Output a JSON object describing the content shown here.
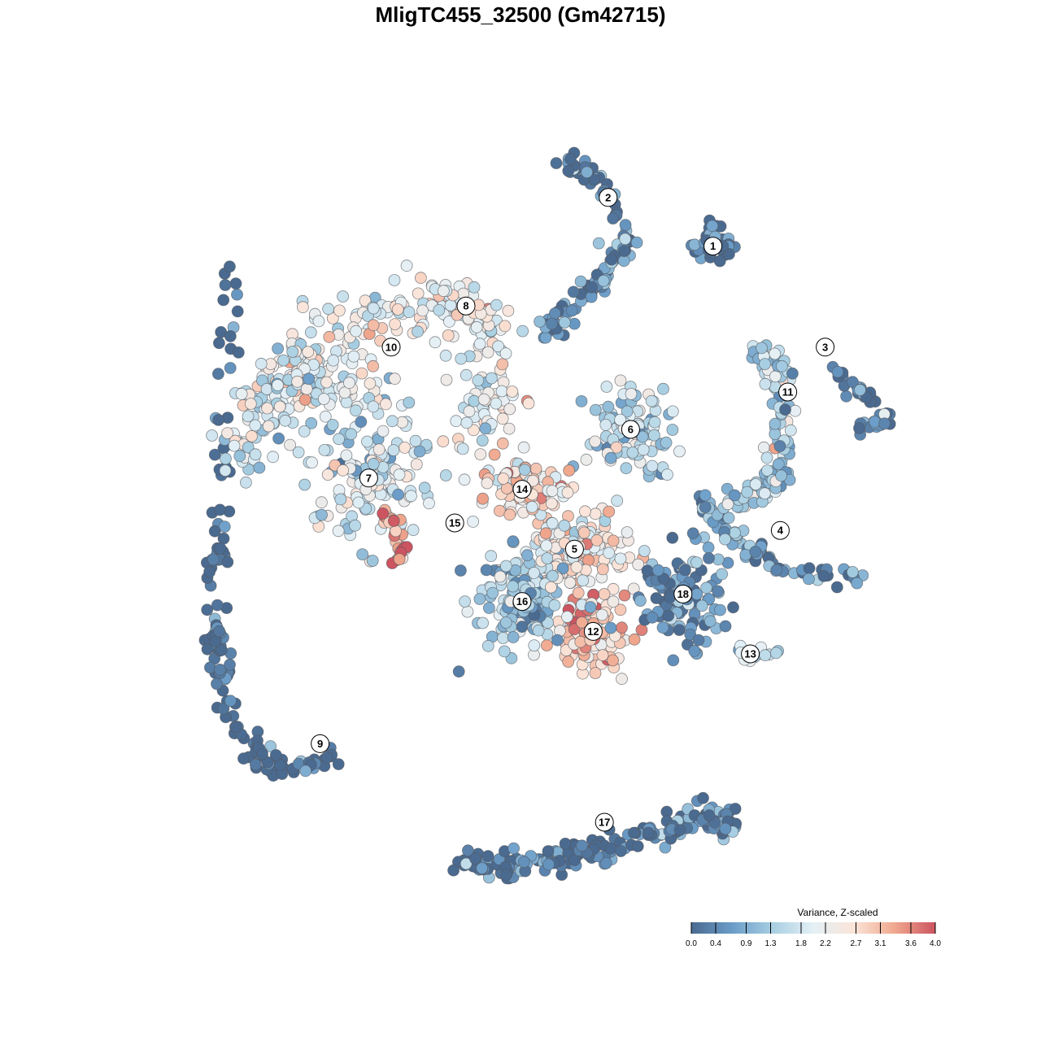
{
  "chart_data": {
    "type": "scatter",
    "title": "MligTC455_32500 (Gm42715)",
    "xlim": [
      -10,
      10
    ],
    "ylim": [
      -10,
      10
    ],
    "grid": false,
    "legend": {
      "title": "Variance, Z-scaled",
      "placement": "bottom-right",
      "range": [
        0.0,
        4.0
      ],
      "ticks": [
        0.0,
        0.4,
        0.9,
        1.3,
        1.8,
        2.2,
        2.7,
        3.1,
        3.6,
        4.0
      ],
      "tick_labels": [
        "0.0",
        "0.4",
        "0.9",
        "1.3",
        "1.8",
        "2.2",
        "2.7",
        "3.1",
        "3.6",
        "4.0"
      ],
      "colors": [
        "#4a6a90",
        "#6a9cc8",
        "#a8cfe2",
        "#e4f0f6",
        "#fbe4d8",
        "#f0a88e",
        "#cc5460"
      ]
    },
    "clusters": [
      {
        "label": "1",
        "x": 4.6,
        "y": 6.9,
        "value": 0.1
      },
      {
        "label": "2",
        "x": 1.8,
        "y": 8.2,
        "value": 0.4
      },
      {
        "label": "3",
        "x": 7.6,
        "y": 4.2,
        "value": 0.3
      },
      {
        "label": "4",
        "x": 6.4,
        "y": -0.7,
        "value": 0.6
      },
      {
        "label": "5",
        "x": 0.9,
        "y": -1.2,
        "value": 2.4
      },
      {
        "label": "6",
        "x": 2.4,
        "y": 2.0,
        "value": 1.6
      },
      {
        "label": "7",
        "x": -4.6,
        "y": 0.7,
        "value": 1.8
      },
      {
        "label": "8",
        "x": -2.0,
        "y": 5.3,
        "value": 2.2
      },
      {
        "label": "9",
        "x": -5.9,
        "y": -6.4,
        "value": 0.05
      },
      {
        "label": "10",
        "x": -4.0,
        "y": 4.2,
        "value": 1.9
      },
      {
        "label": "11",
        "x": 6.6,
        "y": 3.0,
        "value": 1.4
      },
      {
        "label": "12",
        "x": 1.4,
        "y": -3.4,
        "value": 3.0
      },
      {
        "label": "13",
        "x": 5.6,
        "y": -4.0,
        "value": 2.0
      },
      {
        "label": "14",
        "x": -0.5,
        "y": 0.4,
        "value": 2.6
      },
      {
        "label": "15",
        "x": -2.3,
        "y": -0.5,
        "value": 3.2
      },
      {
        "label": "16",
        "x": -0.5,
        "y": -2.6,
        "value": 1.2
      },
      {
        "label": "17",
        "x": 1.7,
        "y": -8.5,
        "value": 0.1
      },
      {
        "label": "18",
        "x": 3.8,
        "y": -2.4,
        "value": 0.5
      }
    ]
  }
}
